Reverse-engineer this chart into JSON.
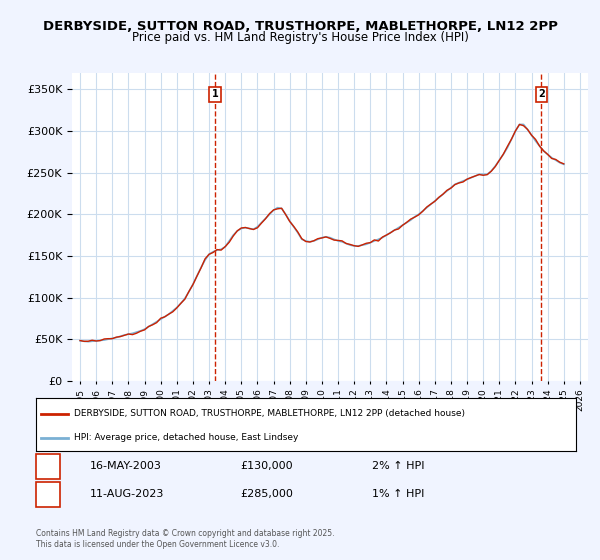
{
  "title": "DERBYSIDE, SUTTON ROAD, TRUSTHORPE, MABLETHORPE, LN12 2PP",
  "subtitle": "Price paid vs. HM Land Registry's House Price Index (HPI)",
  "bg_color": "#f0f4ff",
  "plot_bg_color": "#ffffff",
  "grid_color": "#ccddee",
  "hpi_color": "#7ab0d4",
  "price_color": "#cc2200",
  "marker1_color": "#cc2200",
  "marker2_color": "#cc2200",
  "ylim": [
    0,
    370000
  ],
  "yticks": [
    0,
    50000,
    100000,
    150000,
    200000,
    250000,
    300000,
    350000
  ],
  "xlim_start": 1994.5,
  "xlim_end": 2026.5,
  "sale1_x": 2003.37,
  "sale1_y": 130000,
  "sale1_label": "1",
  "sale2_x": 2023.61,
  "sale2_y": 285000,
  "sale2_label": "2",
  "legend_line1": "DERBYSIDE, SUTTON ROAD, TRUSTHORPE, MABLETHORPE, LN12 2PP (detached house)",
  "legend_line2": "HPI: Average price, detached house, East Lindsey",
  "note1_label": "1",
  "note1_date": "16-MAY-2003",
  "note1_price": "£130,000",
  "note1_hpi": "2% ↑ HPI",
  "note2_label": "2",
  "note2_date": "11-AUG-2023",
  "note2_price": "£285,000",
  "note2_hpi": "1% ↑ HPI",
  "footer": "Contains HM Land Registry data © Crown copyright and database right 2025.\nThis data is licensed under the Open Government Licence v3.0.",
  "hpi_data_x": [
    1995.0,
    1995.25,
    1995.5,
    1995.75,
    1996.0,
    1996.25,
    1996.5,
    1996.75,
    1997.0,
    1997.25,
    1997.5,
    1997.75,
    1998.0,
    1998.25,
    1998.5,
    1998.75,
    1999.0,
    1999.25,
    1999.5,
    1999.75,
    2000.0,
    2000.25,
    2000.5,
    2000.75,
    2001.0,
    2001.25,
    2001.5,
    2001.75,
    2002.0,
    2002.25,
    2002.5,
    2002.75,
    2003.0,
    2003.25,
    2003.5,
    2003.75,
    2004.0,
    2004.25,
    2004.5,
    2004.75,
    2005.0,
    2005.25,
    2005.5,
    2005.75,
    2006.0,
    2006.25,
    2006.5,
    2006.75,
    2007.0,
    2007.25,
    2007.5,
    2007.75,
    2008.0,
    2008.25,
    2008.5,
    2008.75,
    2009.0,
    2009.25,
    2009.5,
    2009.75,
    2010.0,
    2010.25,
    2010.5,
    2010.75,
    2011.0,
    2011.25,
    2011.5,
    2011.75,
    2012.0,
    2012.25,
    2012.5,
    2012.75,
    2013.0,
    2013.25,
    2013.5,
    2013.75,
    2014.0,
    2014.25,
    2014.5,
    2014.75,
    2015.0,
    2015.25,
    2015.5,
    2015.75,
    2016.0,
    2016.25,
    2016.5,
    2016.75,
    2017.0,
    2017.25,
    2017.5,
    2017.75,
    2018.0,
    2018.25,
    2018.5,
    2018.75,
    2019.0,
    2019.25,
    2019.5,
    2019.75,
    2020.0,
    2020.25,
    2020.5,
    2020.75,
    2021.0,
    2021.25,
    2021.5,
    2021.75,
    2022.0,
    2022.25,
    2022.5,
    2022.75,
    2023.0,
    2023.25,
    2023.5,
    2023.75,
    2024.0,
    2024.25,
    2024.5,
    2024.75,
    2025.0
  ],
  "hpi_data_y": [
    48000,
    47500,
    47000,
    47500,
    48000,
    48500,
    49000,
    50000,
    51000,
    52000,
    53500,
    55000,
    56000,
    57000,
    58500,
    60000,
    62000,
    65000,
    68000,
    71000,
    74000,
    77000,
    80000,
    84000,
    88000,
    93000,
    99000,
    107000,
    116000,
    126000,
    136000,
    145000,
    152000,
    155000,
    157000,
    158000,
    161000,
    168000,
    175000,
    180000,
    183000,
    184000,
    183000,
    182000,
    185000,
    190000,
    195000,
    200000,
    205000,
    208000,
    207000,
    200000,
    192000,
    185000,
    178000,
    170000,
    168000,
    167000,
    168000,
    170000,
    172000,
    173000,
    172000,
    170000,
    168000,
    167000,
    165000,
    163000,
    162000,
    162000,
    163000,
    164000,
    166000,
    168000,
    170000,
    172000,
    175000,
    178000,
    181000,
    184000,
    187000,
    190000,
    193000,
    197000,
    200000,
    204000,
    208000,
    212000,
    216000,
    220000,
    224000,
    228000,
    232000,
    236000,
    238000,
    240000,
    242000,
    244000,
    246000,
    248000,
    248000,
    248000,
    252000,
    258000,
    265000,
    272000,
    280000,
    290000,
    300000,
    308000,
    308000,
    302000,
    295000,
    288000,
    282000,
    276000,
    272000,
    268000,
    265000,
    262000,
    260000
  ]
}
